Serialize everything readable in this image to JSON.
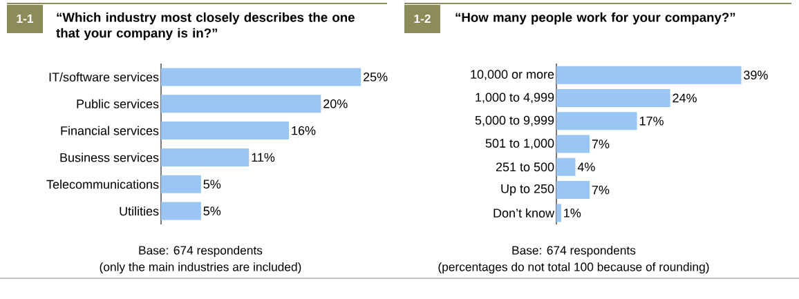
{
  "chart_data": [
    {
      "type": "bar",
      "orientation": "horizontal",
      "title": "“Which industry most closely describes the one that your company is in?”",
      "categories": [
        "IT/software services",
        "Public services",
        "Financial services",
        "Business services",
        "Telecommunications",
        "Utilities"
      ],
      "values": [
        25,
        20,
        16,
        11,
        5,
        5
      ],
      "value_labels": [
        "25%",
        "20%",
        "16%",
        "11%",
        "5%",
        "5%"
      ],
      "color": "#99c6f2",
      "annotations": [
        "1-1",
        "Base: 674 respondents",
        "(only the main industries are included)"
      ]
    },
    {
      "type": "bar",
      "orientation": "horizontal",
      "title": "“How many people work for your company?”",
      "categories": [
        "10,000 or more",
        "1,000 to 4,999",
        "5,000 to 9,999",
        "501 to 1,000",
        "251 to 500",
        "Up to 250",
        "Don’t know"
      ],
      "values": [
        39,
        24,
        17,
        7,
        4,
        7,
        1
      ],
      "value_labels": [
        "39%",
        "24%",
        "17%",
        "7%",
        "4%",
        "7%",
        "1%"
      ],
      "color": "#99c6f2",
      "annotations": [
        "1-2",
        "Base: 674 respondents",
        "(percentages do not total 100 because of rounding)"
      ]
    }
  ]
}
